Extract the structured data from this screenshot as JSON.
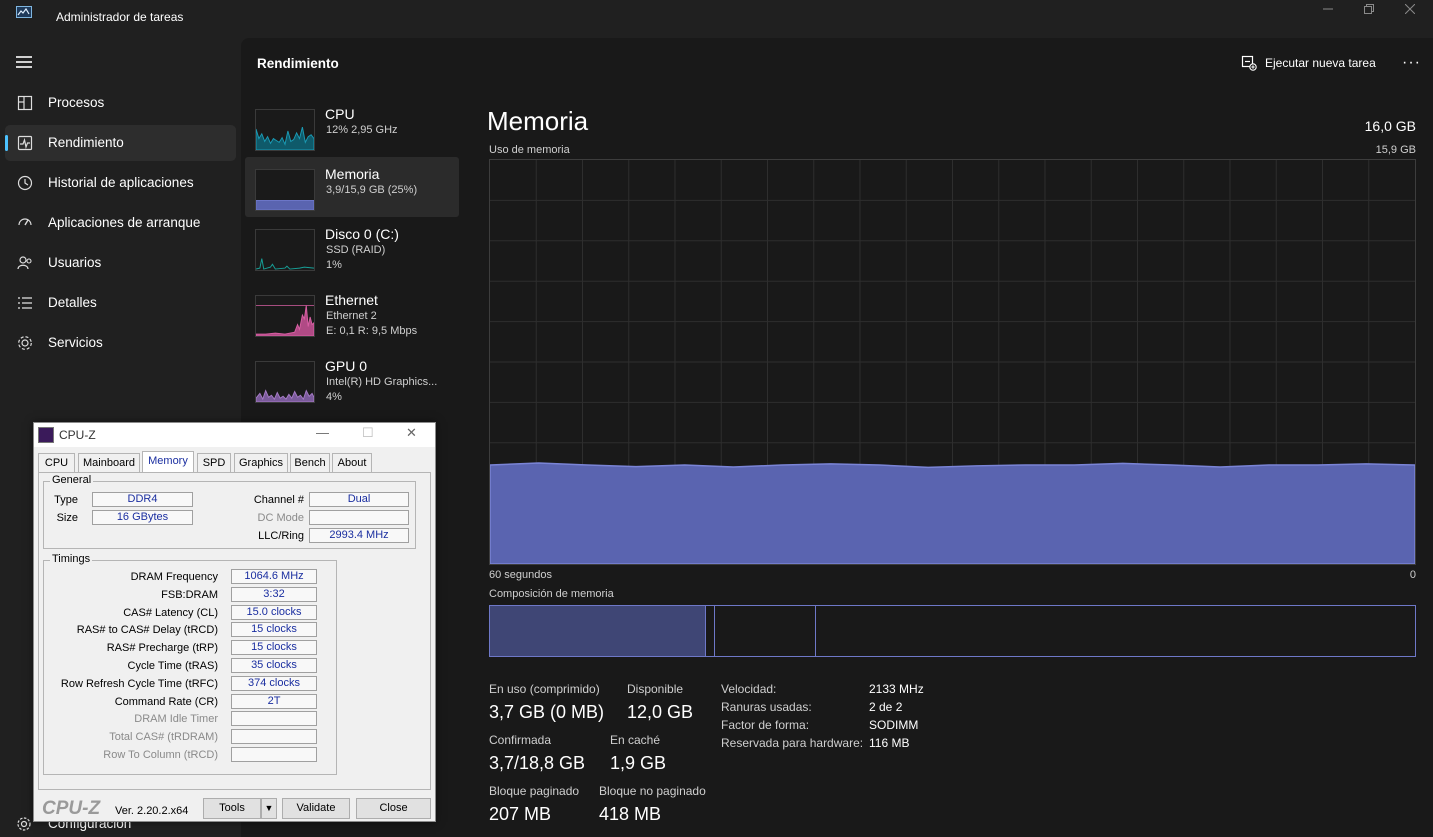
{
  "window": {
    "title": "Administrador de tareas"
  },
  "sidebar": {
    "items": [
      {
        "label": "Procesos",
        "icon": "processes-icon"
      },
      {
        "label": "Rendimiento",
        "icon": "performance-icon",
        "active": true
      },
      {
        "label": "Historial de aplicaciones",
        "icon": "history-icon"
      },
      {
        "label": "Aplicaciones de arranque",
        "icon": "startup-icon"
      },
      {
        "label": "Usuarios",
        "icon": "users-icon"
      },
      {
        "label": "Detalles",
        "icon": "details-icon"
      },
      {
        "label": "Servicios",
        "icon": "services-icon"
      }
    ],
    "settings_label": "Configuración"
  },
  "header": {
    "title": "Rendimiento",
    "run_task_label": "Ejecutar nueva tarea",
    "more_label": "···"
  },
  "perf_list": [
    {
      "name": "CPU",
      "sub1": "12% 2,95 GHz",
      "sub2": "",
      "color": "#1a9bb5"
    },
    {
      "name": "Memoria",
      "sub1": "3,9/15,9 GB (25%)",
      "sub2": "",
      "color": "#6e78c8"
    },
    {
      "name": "Disco 0 (C:)",
      "sub1": "SSD (RAID)",
      "sub2": "1%",
      "color": "#17a098"
    },
    {
      "name": "Ethernet",
      "sub1": "Ethernet 2",
      "sub2": "E: 0,1 R: 9,5 Mbps",
      "color": "#d75fa3"
    },
    {
      "name": "GPU 0",
      "sub1": "Intel(R) HD Graphics...",
      "sub2": "4%",
      "color": "#a57ac6"
    }
  ],
  "memory": {
    "title": "Memoria",
    "total": "16,0 GB",
    "usage_label": "Uso de memoria",
    "usage_max": "15,9 GB",
    "time_label": "60 segundos",
    "time_end": "0",
    "usage_fraction": 0.245,
    "composition_label": "Composición de memoria",
    "composition": {
      "in_use": 0.233,
      "modified": 0.01,
      "standby": 0.109
    },
    "stats": {
      "in_use_label": "En uso (comprimido)",
      "in_use_value": "3,7 GB (0 MB)",
      "available_label": "Disponible",
      "available_value": "12,0 GB",
      "committed_label": "Confirmada",
      "committed_value": "3,7/18,8 GB",
      "cached_label": "En caché",
      "cached_value": "1,9 GB",
      "paged_label": "Bloque paginado",
      "paged_value": "207 MB",
      "nonpaged_label": "Bloque no paginado",
      "nonpaged_value": "418 MB"
    },
    "details": {
      "speed_key": "Velocidad:",
      "speed_val": "2133 MHz",
      "slots_key": "Ranuras usadas:",
      "slots_val": "2 de 2",
      "form_key": "Factor de forma:",
      "form_val": "SODIMM",
      "reserved_key": "Reservada para hardware:",
      "reserved_val": "116 MB"
    }
  },
  "cpuz": {
    "title": "CPU-Z",
    "tabs": [
      "CPU",
      "Mainboard",
      "Memory",
      "SPD",
      "Graphics",
      "Bench",
      "About"
    ],
    "general_title": "General",
    "type_label": "Type",
    "type_value": "DDR4",
    "size_label": "Size",
    "size_value": "16 GBytes",
    "channel_label": "Channel #",
    "channel_value": "Dual",
    "dcmode_label": "DC Mode",
    "dcmode_value": "",
    "llc_label": "LLC/Ring",
    "llc_value": "2993.4 MHz",
    "timings_title": "Timings",
    "timings": [
      {
        "label": "DRAM Frequency",
        "value": "1064.6 MHz",
        "dim": false
      },
      {
        "label": "FSB:DRAM",
        "value": "3:32",
        "dim": false
      },
      {
        "label": "CAS# Latency (CL)",
        "value": "15.0 clocks",
        "dim": false
      },
      {
        "label": "RAS# to CAS# Delay (tRCD)",
        "value": "15 clocks",
        "dim": false
      },
      {
        "label": "RAS# Precharge (tRP)",
        "value": "15 clocks",
        "dim": false
      },
      {
        "label": "Cycle Time (tRAS)",
        "value": "35 clocks",
        "dim": false
      },
      {
        "label": "Row Refresh Cycle Time (tRFC)",
        "value": "374 clocks",
        "dim": false
      },
      {
        "label": "Command Rate (CR)",
        "value": "2T",
        "dim": false
      },
      {
        "label": "DRAM Idle Timer",
        "value": "",
        "dim": true
      },
      {
        "label": "Total CAS# (tRDRAM)",
        "value": "",
        "dim": true
      },
      {
        "label": "Row To Column (tRCD)",
        "value": "",
        "dim": true
      }
    ],
    "logo": "CPU-Z",
    "version": "Ver. 2.20.2.x64",
    "tools_label": "Tools",
    "validate_label": "Validate",
    "close_label": "Close"
  }
}
